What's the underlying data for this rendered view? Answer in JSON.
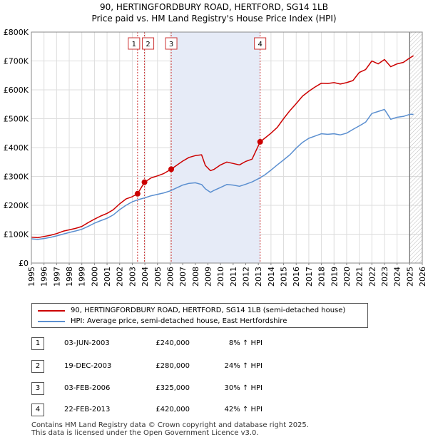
{
  "title_line1": "90, HERTINGFORDBURY ROAD, HERTFORD, SG14 1LB",
  "title_line2": "Price paid vs. HM Land Registry's House Price Index (HPI)",
  "legend": {
    "red_label": "90, HERTINGFORDBURY ROAD, HERTFORD, SG14 1LB (semi-detached house)",
    "blue_label": "HPI: Average price, semi-detached house, East Hertfordshire"
  },
  "transactions": [
    {
      "num": "1",
      "date": "03-JUN-2003",
      "price": "£240,000",
      "hpi": "8% ↑ HPI"
    },
    {
      "num": "2",
      "date": "19-DEC-2003",
      "price": "£280,000",
      "hpi": "24% ↑ HPI"
    },
    {
      "num": "3",
      "date": "03-FEB-2006",
      "price": "£325,000",
      "hpi": "30% ↑ HPI"
    },
    {
      "num": "4",
      "date": "22-FEB-2013",
      "price": "£420,000",
      "hpi": "42% ↑ HPI"
    }
  ],
  "footer": {
    "line1": "Contains HM Land Registry data © Crown copyright and database right 2025.",
    "line2": "This data is licensed under the Open Government Licence v3.0."
  },
  "chart_data": {
    "type": "line",
    "title": "90, HERTINGFORDBURY ROAD, HERTFORD, SG14 1LB",
    "subtitle": "Price paid vs. HM Land Registry's House Price Index (HPI)",
    "xlabel": "",
    "ylabel": "",
    "xlim": [
      1995,
      2026
    ],
    "ylim": [
      0,
      800000
    ],
    "ytick_values": [
      0,
      100000,
      200000,
      300000,
      400000,
      500000,
      600000,
      700000,
      800000
    ],
    "ytick_labels": [
      "£0",
      "£100K",
      "£200K",
      "£300K",
      "£400K",
      "£500K",
      "£600K",
      "£700K",
      "£800K"
    ],
    "xtick_values": [
      1995,
      1996,
      1997,
      1998,
      1999,
      2000,
      2001,
      2002,
      2003,
      2004,
      2005,
      2006,
      2007,
      2008,
      2009,
      2010,
      2011,
      2012,
      2013,
      2014,
      2015,
      2016,
      2017,
      2018,
      2019,
      2020,
      2021,
      2022,
      2023,
      2024,
      2025,
      2026
    ],
    "xtick_labels": [
      "1995",
      "1996",
      "1997",
      "1998",
      "1999",
      "2000",
      "2001",
      "2002",
      "2003",
      "2004",
      "2005",
      "2006",
      "2007",
      "2008",
      "2009",
      "2010",
      "2011",
      "2012",
      "2013",
      "2014",
      "2015",
      "2016",
      "2017",
      "2018",
      "2019",
      "2020",
      "2021",
      "2022",
      "2023",
      "2024",
      "2025",
      "2026"
    ],
    "grid": true,
    "shaded_region": {
      "x0": 2006.09,
      "x1": 2013.14
    },
    "future_hatch_from": 2025.0,
    "series": [
      {
        "name": "90, HERTINGFORDBURY ROAD, HERTFORD, SG14 1LB (semi-detached house)",
        "color": "#cc0000",
        "x": [
          1995,
          1995.5,
          1996,
          1996.5,
          1997,
          1997.5,
          1998,
          1998.5,
          1999,
          1999.5,
          2000,
          2000.5,
          2001,
          2001.5,
          2002,
          2002.5,
          2003,
          2003.42,
          2003.97,
          2004.5,
          2005,
          2005.5,
          2006.09,
          2006.5,
          2007,
          2007.5,
          2008,
          2008.5,
          2008.8,
          2009.2,
          2009.5,
          2010,
          2010.5,
          2011,
          2011.5,
          2012,
          2012.5,
          2013.14,
          2013.5,
          2014,
          2014.5,
          2015,
          2015.5,
          2016,
          2016.5,
          2017,
          2017.5,
          2018,
          2018.5,
          2019,
          2019.5,
          2020,
          2020.5,
          2021,
          2021.5,
          2022,
          2022.5,
          2023,
          2023.5,
          2024,
          2024.5,
          2025,
          2025.3
        ],
        "y": [
          90000,
          88000,
          92000,
          96000,
          102000,
          110000,
          115000,
          120000,
          127000,
          140000,
          152000,
          163000,
          172000,
          185000,
          205000,
          222000,
          230000,
          240000,
          280000,
          295000,
          302000,
          310000,
          325000,
          338000,
          353000,
          366000,
          372000,
          375000,
          338000,
          320000,
          325000,
          340000,
          350000,
          345000,
          340000,
          352000,
          360000,
          420000,
          432000,
          450000,
          470000,
          500000,
          528000,
          552000,
          578000,
          595000,
          610000,
          623000,
          622000,
          625000,
          620000,
          625000,
          632000,
          660000,
          670000,
          700000,
          690000,
          705000,
          680000,
          690000,
          695000,
          710000,
          718000
        ]
      },
      {
        "name": "HPI: Average price, semi-detached house, East Hertfordshire",
        "color": "#5b8fd0",
        "x": [
          1995,
          1995.5,
          1996,
          1996.5,
          1997,
          1997.5,
          1998,
          1998.5,
          1999,
          1999.5,
          2000,
          2000.5,
          2001,
          2001.5,
          2002,
          2002.5,
          2003,
          2003.5,
          2004,
          2004.5,
          2005,
          2005.5,
          2006,
          2006.5,
          2007,
          2007.5,
          2008,
          2008.5,
          2008.8,
          2009.2,
          2009.5,
          2010,
          2010.5,
          2011,
          2011.5,
          2012,
          2012.5,
          2013,
          2013.5,
          2014,
          2014.5,
          2015,
          2015.5,
          2016,
          2016.5,
          2017,
          2017.5,
          2018,
          2018.5,
          2019,
          2019.5,
          2020,
          2020.5,
          2021,
          2021.5,
          2022,
          2022.5,
          2023,
          2023.5,
          2024,
          2024.5,
          2025,
          2025.3
        ],
        "y": [
          84000,
          82000,
          85000,
          89000,
          94000,
          100000,
          106000,
          111000,
          117000,
          127000,
          138000,
          147000,
          155000,
          167000,
          185000,
          200000,
          212000,
          220000,
          226000,
          233000,
          238000,
          243000,
          250000,
          260000,
          270000,
          276000,
          278000,
          272000,
          257000,
          245000,
          252000,
          262000,
          272000,
          270000,
          266000,
          273000,
          281000,
          292000,
          305000,
          322000,
          340000,
          357000,
          375000,
          398000,
          418000,
          432000,
          440000,
          448000,
          446000,
          448000,
          444000,
          450000,
          463000,
          475000,
          488000,
          518000,
          525000,
          532000,
          498000,
          505000,
          508000,
          515000,
          515000
        ]
      }
    ],
    "sale_markers": [
      {
        "label": "1",
        "x": 2003.42,
        "y": 240000
      },
      {
        "label": "2",
        "x": 2003.97,
        "y": 280000
      },
      {
        "label": "3",
        "x": 2006.09,
        "y": 325000
      },
      {
        "label": "4",
        "x": 2013.14,
        "y": 420000
      }
    ]
  }
}
